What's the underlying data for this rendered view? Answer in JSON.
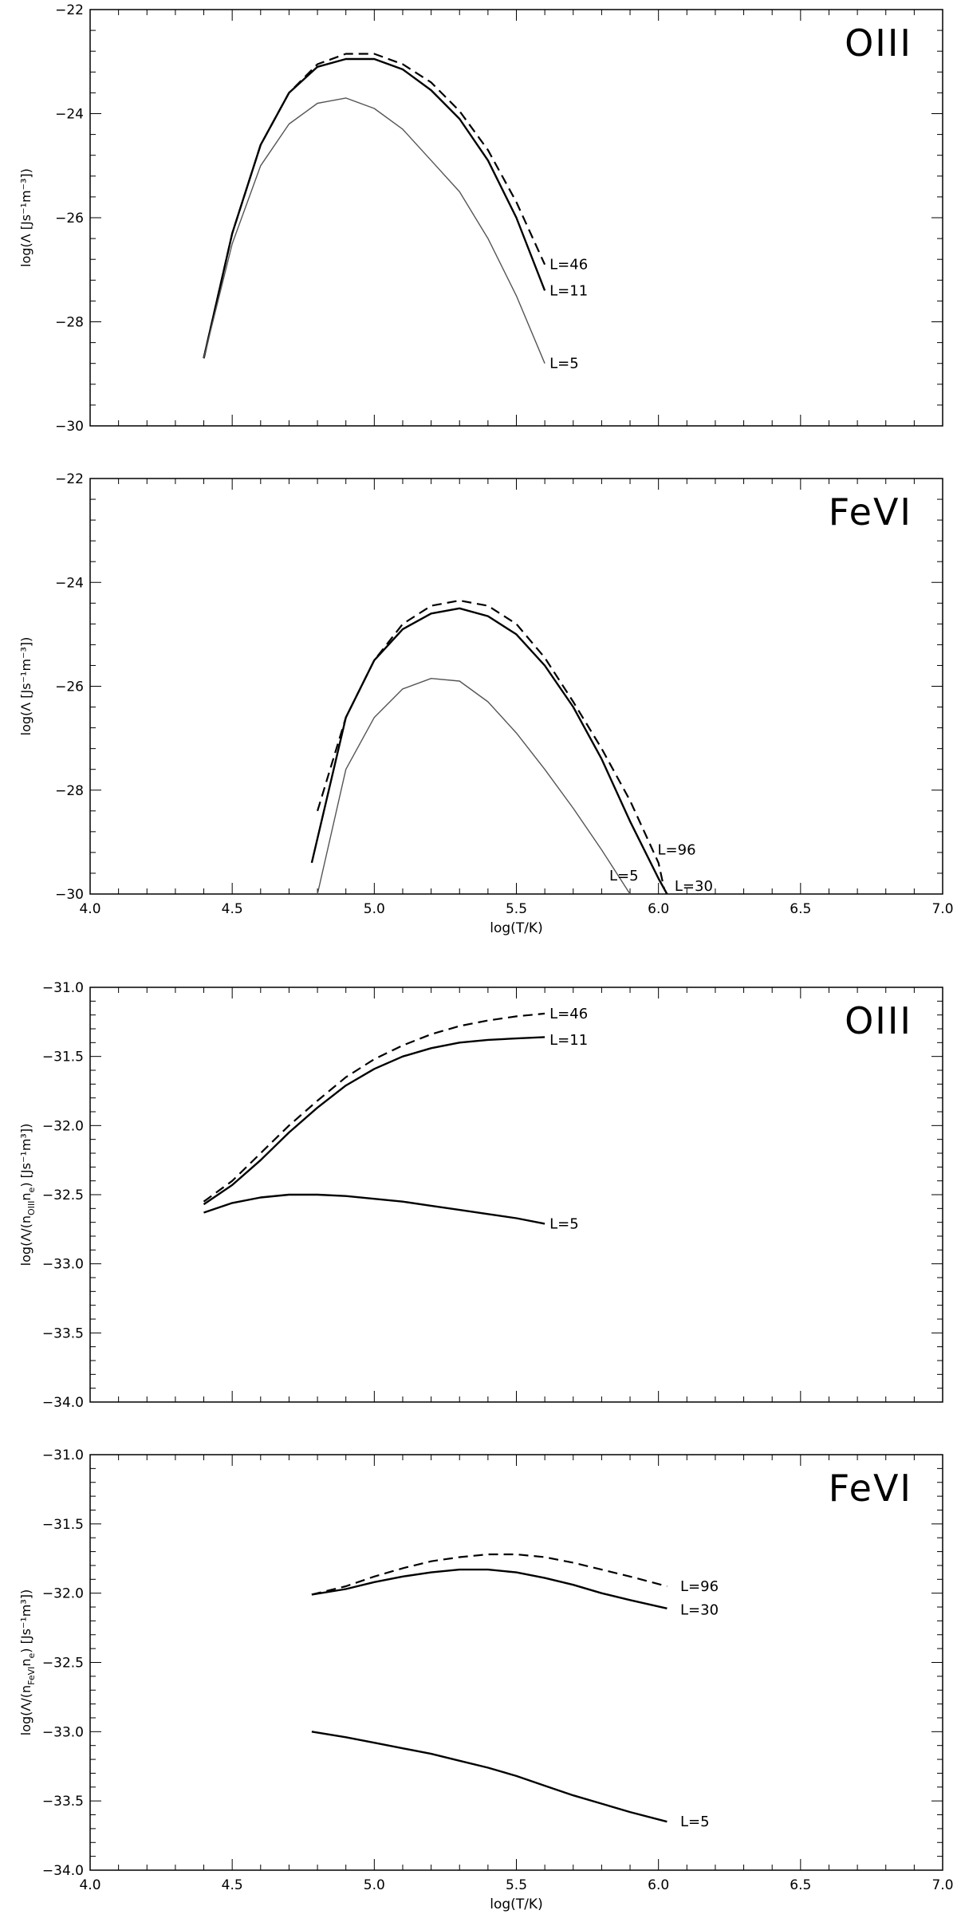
{
  "chart_data": [
    {
      "type": "line",
      "panel_label": "OIII",
      "ylabel": "log(Λ [Js⁻¹m⁻³])",
      "xlabel": "",
      "xlim": [
        4.0,
        7.0
      ],
      "ylim": [
        -30,
        -22
      ],
      "y_ticks": [
        -30,
        -28,
        -26,
        -24,
        -22
      ],
      "x_ticks": [
        4.0,
        4.5,
        5.0,
        5.5,
        6.0,
        6.5,
        7.0
      ],
      "show_x_tick_labels": false,
      "series": [
        {
          "name": "L=46",
          "style": "dashed",
          "color": "#000000",
          "x": [
            4.4,
            4.5,
            4.6,
            4.7,
            4.8,
            4.9,
            5.0,
            5.1,
            5.2,
            5.3,
            5.4,
            5.5,
            5.6
          ],
          "y": [
            -28.7,
            -26.3,
            -24.6,
            -23.6,
            -23.05,
            -22.85,
            -22.85,
            -23.05,
            -23.4,
            -23.95,
            -24.7,
            -25.7,
            -26.9
          ]
        },
        {
          "name": "L=11",
          "style": "solid",
          "color": "#000000",
          "x": [
            4.4,
            4.5,
            4.6,
            4.7,
            4.8,
            4.9,
            5.0,
            5.1,
            5.2,
            5.3,
            5.4,
            5.5,
            5.6
          ],
          "y": [
            -28.7,
            -26.3,
            -24.6,
            -23.6,
            -23.1,
            -22.95,
            -22.95,
            -23.15,
            -23.55,
            -24.1,
            -24.9,
            -26.0,
            -27.4
          ]
        },
        {
          "name": "L=5",
          "style": "thin",
          "color": "#555555",
          "x": [
            4.4,
            4.5,
            4.6,
            4.7,
            4.8,
            4.9,
            5.0,
            5.1,
            5.2,
            5.3,
            5.4,
            5.5,
            5.6
          ],
          "y": [
            -28.7,
            -26.5,
            -25.0,
            -24.2,
            -23.8,
            -23.7,
            -23.9,
            -24.3,
            -24.9,
            -25.5,
            -26.4,
            -27.5,
            -28.8
          ]
        }
      ],
      "labels": [
        {
          "text": "L=46",
          "x": 5.6,
          "y": -26.9
        },
        {
          "text": "L=11",
          "x": 5.6,
          "y": -27.4
        },
        {
          "text": "L=5",
          "x": 5.6,
          "y": -28.8
        }
      ]
    },
    {
      "type": "line",
      "panel_label": "FeVI",
      "ylabel": "log(Λ [Js⁻¹m⁻³])",
      "xlabel": "log(T/K)",
      "xlim": [
        4.0,
        7.0
      ],
      "ylim": [
        -30,
        -22
      ],
      "y_ticks": [
        -30,
        -28,
        -26,
        -24,
        -22
      ],
      "x_ticks": [
        4.0,
        4.5,
        5.0,
        5.5,
        6.0,
        6.5,
        7.0
      ],
      "x_tick_labels": [
        "4.0",
        "4.5",
        "5.0",
        "5.5",
        "6.0",
        "6.5",
        "7.0"
      ],
      "show_x_tick_labels": true,
      "series": [
        {
          "name": "L=96",
          "style": "dashed",
          "color": "#000000",
          "x": [
            4.8,
            4.9,
            5.0,
            5.1,
            5.2,
            5.3,
            5.4,
            5.5,
            5.6,
            5.7,
            5.8,
            5.9,
            6.0,
            6.02
          ],
          "y": [
            -28.4,
            -26.6,
            -25.5,
            -24.8,
            -24.45,
            -24.35,
            -24.45,
            -24.8,
            -25.45,
            -26.3,
            -27.2,
            -28.2,
            -29.4,
            -29.9
          ]
        },
        {
          "name": "L=30",
          "style": "solid",
          "color": "#000000",
          "x": [
            4.78,
            4.9,
            5.0,
            5.1,
            5.2,
            5.3,
            5.4,
            5.5,
            5.6,
            5.7,
            5.8,
            5.9,
            6.0,
            6.03
          ],
          "y": [
            -29.4,
            -26.6,
            -25.5,
            -24.9,
            -24.6,
            -24.5,
            -24.65,
            -25.0,
            -25.6,
            -26.4,
            -27.4,
            -28.6,
            -29.7,
            -30.0
          ]
        },
        {
          "name": "L=5",
          "style": "thin",
          "color": "#555555",
          "x": [
            4.8,
            4.9,
            5.0,
            5.1,
            5.2,
            5.3,
            5.4,
            5.5,
            5.6,
            5.7,
            5.8,
            5.9
          ],
          "y": [
            -30.0,
            -27.6,
            -26.6,
            -26.05,
            -25.85,
            -25.9,
            -26.3,
            -26.9,
            -27.6,
            -28.35,
            -29.15,
            -30.0
          ]
        }
      ],
      "labels": [
        {
          "text": "L=5",
          "x": 5.81,
          "y": -29.65
        },
        {
          "text": "L=96",
          "x": 5.98,
          "y": -29.15
        },
        {
          "text": "L=30",
          "x": 6.04,
          "y": -29.85
        }
      ]
    },
    {
      "type": "line",
      "panel_label": "OIII",
      "ylabel": "log(Λ/(nₒᵢᵢᵢnₑ) [Js⁻¹m³])",
      "ylabel_main": "log(Λ/(n",
      "ylabel_sub1": "OIII",
      "ylabel_mid": "n",
      "ylabel_sub2": "e",
      "ylabel_end": ") [Js⁻¹m³])",
      "xlabel": "",
      "xlim": [
        4.0,
        7.0
      ],
      "ylim": [
        -34.0,
        -31.0
      ],
      "y_ticks": [
        -34.0,
        -33.5,
        -33.0,
        -32.5,
        -32.0,
        -31.5,
        -31.0
      ],
      "y_tick_labels": [
        "−34.0",
        "−33.5",
        "−33.0",
        "−32.5",
        "−32.0",
        "−31.5",
        "−31.0"
      ],
      "x_ticks": [
        4.0,
        4.5,
        5.0,
        5.5,
        6.0,
        6.5,
        7.0
      ],
      "show_x_tick_labels": false,
      "series": [
        {
          "name": "L=46",
          "style": "dashed",
          "color": "#000000",
          "x": [
            4.4,
            4.5,
            4.6,
            4.7,
            4.8,
            4.9,
            5.0,
            5.1,
            5.2,
            5.3,
            5.4,
            5.5,
            5.6
          ],
          "y": [
            -32.55,
            -32.4,
            -32.2,
            -32.0,
            -31.82,
            -31.65,
            -31.52,
            -31.42,
            -31.34,
            -31.28,
            -31.24,
            -31.21,
            -31.19
          ]
        },
        {
          "name": "L=11",
          "style": "solid",
          "color": "#000000",
          "x": [
            4.4,
            4.5,
            4.6,
            4.7,
            4.8,
            4.9,
            5.0,
            5.1,
            5.2,
            5.3,
            5.4,
            5.5,
            5.6
          ],
          "y": [
            -32.57,
            -32.43,
            -32.25,
            -32.05,
            -31.87,
            -31.71,
            -31.59,
            -31.5,
            -31.44,
            -31.4,
            -31.38,
            -31.37,
            -31.36
          ]
        },
        {
          "name": "L=5",
          "style": "solid",
          "color": "#000000",
          "x": [
            4.4,
            4.5,
            4.6,
            4.7,
            4.8,
            4.9,
            5.0,
            5.1,
            5.2,
            5.3,
            5.4,
            5.5,
            5.6
          ],
          "y": [
            -32.63,
            -32.56,
            -32.52,
            -32.5,
            -32.5,
            -32.51,
            -32.53,
            -32.55,
            -32.58,
            -32.61,
            -32.64,
            -32.67,
            -32.71
          ]
        }
      ],
      "labels": [
        {
          "text": "L=46",
          "x": 5.6,
          "y": -31.19
        },
        {
          "text": "L=11",
          "x": 5.6,
          "y": -31.38
        },
        {
          "text": "L=5",
          "x": 5.6,
          "y": -32.71
        }
      ]
    },
    {
      "type": "line",
      "panel_label": "FeVI",
      "ylabel_main": "log(Λ/(n",
      "ylabel_sub1": "FeVI",
      "ylabel_mid": "n",
      "ylabel_sub2": "e",
      "ylabel_end": ") [Js⁻¹m³])",
      "xlabel": "log(T/K)",
      "xlim": [
        4.0,
        7.0
      ],
      "ylim": [
        -34.0,
        -31.0
      ],
      "y_ticks": [
        -34.0,
        -33.5,
        -33.0,
        -32.5,
        -32.0,
        -31.5,
        -31.0
      ],
      "y_tick_labels": [
        "−34.0",
        "−33.5",
        "−33.0",
        "−32.5",
        "−32.0",
        "−31.5",
        "−31.0"
      ],
      "x_ticks": [
        4.0,
        4.5,
        5.0,
        5.5,
        6.0,
        6.5,
        7.0
      ],
      "x_tick_labels": [
        "4.0",
        "4.5",
        "5.0",
        "5.5",
        "6.0",
        "6.5",
        "7.0"
      ],
      "show_x_tick_labels": true,
      "series": [
        {
          "name": "L=96",
          "style": "dashed",
          "color": "#000000",
          "x": [
            4.78,
            4.9,
            5.0,
            5.1,
            5.2,
            5.3,
            5.4,
            5.5,
            5.6,
            5.7,
            5.8,
            5.9,
            6.03
          ],
          "y": [
            -32.01,
            -31.95,
            -31.88,
            -31.82,
            -31.77,
            -31.74,
            -31.72,
            -31.72,
            -31.74,
            -31.78,
            -31.83,
            -31.88,
            -31.95
          ]
        },
        {
          "name": "L=30",
          "style": "solid",
          "color": "#000000",
          "x": [
            4.78,
            4.9,
            5.0,
            5.1,
            5.2,
            5.3,
            5.4,
            5.5,
            5.6,
            5.7,
            5.8,
            5.9,
            6.03
          ],
          "y": [
            -32.01,
            -31.97,
            -31.92,
            -31.88,
            -31.85,
            -31.83,
            -31.83,
            -31.85,
            -31.89,
            -31.94,
            -32.0,
            -32.05,
            -32.11
          ]
        },
        {
          "name": "L=5",
          "style": "solid",
          "color": "#000000",
          "x": [
            4.78,
            4.9,
            5.0,
            5.1,
            5.2,
            5.3,
            5.4,
            5.5,
            5.6,
            5.7,
            5.8,
            5.9,
            6.03
          ],
          "y": [
            -33.0,
            -33.04,
            -33.08,
            -33.12,
            -33.16,
            -33.21,
            -33.26,
            -33.32,
            -33.39,
            -33.46,
            -33.52,
            -33.58,
            -33.65
          ]
        }
      ],
      "labels": [
        {
          "text": "L=96",
          "x": 6.06,
          "y": -31.95
        },
        {
          "text": "L=30",
          "x": 6.06,
          "y": -32.12
        },
        {
          "text": "L=5",
          "x": 6.06,
          "y": -33.65
        }
      ]
    }
  ]
}
